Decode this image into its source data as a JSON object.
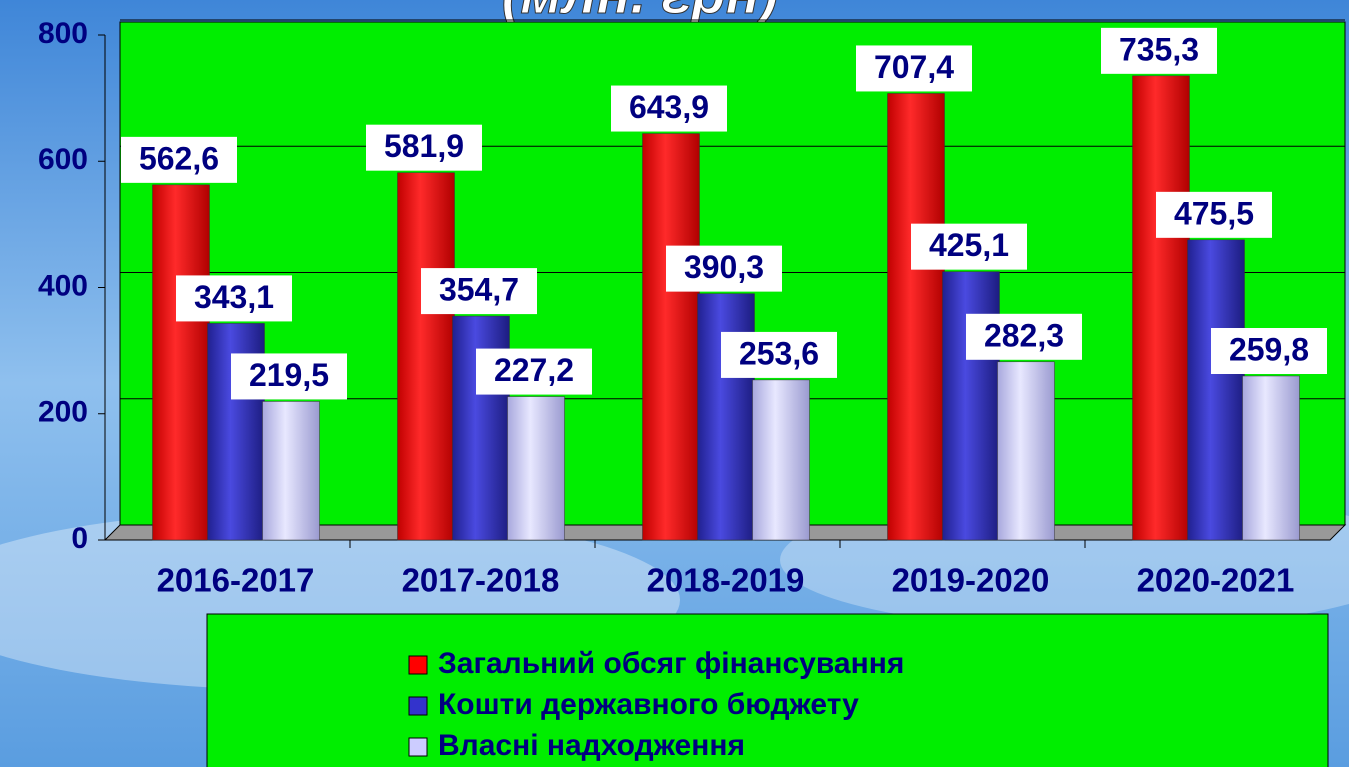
{
  "chart_data": {
    "type": "bar",
    "title": "(млн. грн)",
    "categories": [
      "2016-2017",
      "2017-2018",
      "2018-2019",
      "2019-2020",
      "2020-2021"
    ],
    "series": [
      {
        "name": "Загальний обсяг фінансування",
        "color": "#ff0000",
        "values": [
          562.6,
          581.9,
          643.9,
          707.4,
          735.3
        ],
        "value_labels": [
          "562,6",
          "581,9",
          "643,9",
          "707,4",
          "735,3"
        ]
      },
      {
        "name": "Кошти державного бюджету",
        "color": "#3333cc",
        "values": [
          343.1,
          354.7,
          390.3,
          425.1,
          475.5
        ],
        "value_labels": [
          "343,1",
          "354,7",
          "390,3",
          "425,1",
          "475,5"
        ]
      },
      {
        "name": "Власні надходження",
        "color": "#ccccff",
        "values": [
          219.5,
          227.2,
          253.6,
          282.3,
          259.8
        ],
        "value_labels": [
          "219,5",
          "227,2",
          "253,6",
          "282,3",
          "259,8"
        ]
      }
    ],
    "ylim": [
      0,
      800
    ],
    "yticks": [
      0,
      200,
      400,
      600,
      800
    ],
    "grid": true,
    "legend": "bottom"
  }
}
